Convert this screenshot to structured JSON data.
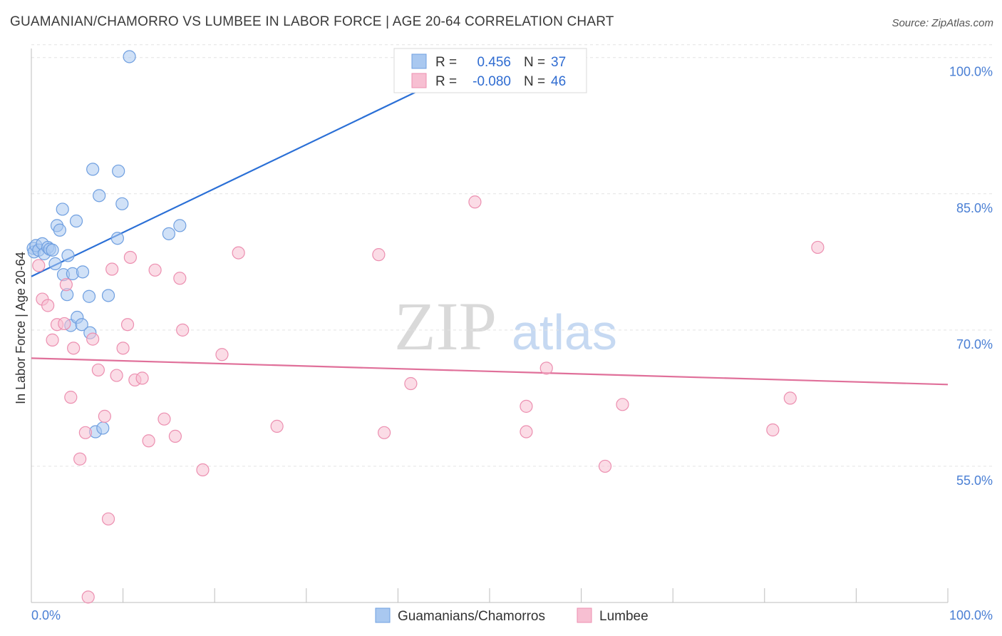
{
  "header": {
    "title": "GUAMANIAN/CHAMORRO VS LUMBEE IN LABOR FORCE | AGE 20-64 CORRELATION CHART",
    "source": "Source: ZipAtlas.com"
  },
  "watermark": {
    "zip": "ZIP",
    "atlas": "atlas"
  },
  "legend": {
    "rows": [
      {
        "r_label": "R =",
        "r_value": "0.456",
        "n_label": "N =",
        "n_value": "37"
      },
      {
        "r_label": "R =",
        "r_value": "-0.080",
        "n_label": "N =",
        "n_value": "46"
      }
    ]
  },
  "colors": {
    "blue_fill": "#a9c8f0",
    "blue_stroke": "#6f9fe0",
    "blue_line": "#2a6fd6",
    "pink_fill": "#f7bfd2",
    "pink_stroke": "#ec8fb0",
    "pink_line": "#e0709a",
    "grid": "#e3e3e3",
    "tick_text": "#4a7fd4"
  },
  "chart_data": {
    "type": "scatter",
    "title": "GUAMANIAN/CHAMORRO VS LUMBEE IN LABOR FORCE | AGE 20-64 CORRELATION CHART",
    "xlabel": "",
    "ylabel": "In Labor Force | Age 20-64",
    "xlim": [
      0,
      100
    ],
    "ylim": [
      40,
      101
    ],
    "x_tick_labels": [
      "0.0%",
      "100.0%"
    ],
    "y_ticks": [
      55,
      70,
      85,
      100
    ],
    "y_tick_labels": [
      "55.0%",
      "70.0%",
      "85.0%",
      "100.0%"
    ],
    "grid": true,
    "legend_position": "top-center",
    "series": [
      {
        "name": "Guamanians/Chamorros",
        "color": "#6f9fe0",
        "trend": {
          "x": [
            0,
            50
          ],
          "y": [
            75.9,
            100.1
          ]
        },
        "points": [
          {
            "x": 0.2,
            "y": 79.0
          },
          {
            "x": 0.3,
            "y": 78.6
          },
          {
            "x": 0.5,
            "y": 79.3
          },
          {
            "x": 0.8,
            "y": 78.8
          },
          {
            "x": 1.2,
            "y": 79.5
          },
          {
            "x": 1.4,
            "y": 78.4
          },
          {
            "x": 1.8,
            "y": 79.1
          },
          {
            "x": 2.0,
            "y": 78.9
          },
          {
            "x": 2.3,
            "y": 78.8
          },
          {
            "x": 2.6,
            "y": 77.3
          },
          {
            "x": 2.8,
            "y": 81.5
          },
          {
            "x": 3.1,
            "y": 81.0
          },
          {
            "x": 3.4,
            "y": 83.3
          },
          {
            "x": 3.5,
            "y": 76.1
          },
          {
            "x": 3.9,
            "y": 73.9
          },
          {
            "x": 4.0,
            "y": 78.2
          },
          {
            "x": 4.3,
            "y": 70.5
          },
          {
            "x": 4.5,
            "y": 76.2
          },
          {
            "x": 4.9,
            "y": 82.0
          },
          {
            "x": 5.0,
            "y": 71.4
          },
          {
            "x": 5.5,
            "y": 70.6
          },
          {
            "x": 5.6,
            "y": 76.4
          },
          {
            "x": 6.3,
            "y": 73.7
          },
          {
            "x": 6.4,
            "y": 69.7
          },
          {
            "x": 6.7,
            "y": 87.7
          },
          {
            "x": 7.0,
            "y": 58.8
          },
          {
            "x": 7.4,
            "y": 84.8
          },
          {
            "x": 7.8,
            "y": 59.2
          },
          {
            "x": 8.4,
            "y": 73.8
          },
          {
            "x": 9.4,
            "y": 80.1
          },
          {
            "x": 9.5,
            "y": 87.5
          },
          {
            "x": 9.9,
            "y": 83.9
          },
          {
            "x": 10.7,
            "y": 100.1
          },
          {
            "x": 15.0,
            "y": 80.6
          },
          {
            "x": 16.2,
            "y": 81.5
          },
          {
            "x": 44.6,
            "y": 100.2
          },
          {
            "x": 47.0,
            "y": 98.4
          }
        ]
      },
      {
        "name": "Lumbee",
        "color": "#ec8fb0",
        "trend": {
          "x": [
            0,
            100
          ],
          "y": [
            66.9,
            64.0
          ]
        },
        "points": [
          {
            "x": 0.8,
            "y": 77.1
          },
          {
            "x": 1.2,
            "y": 73.4
          },
          {
            "x": 1.8,
            "y": 72.7
          },
          {
            "x": 2.3,
            "y": 68.9
          },
          {
            "x": 2.8,
            "y": 70.6
          },
          {
            "x": 3.6,
            "y": 70.7
          },
          {
            "x": 3.8,
            "y": 75.0
          },
          {
            "x": 4.3,
            "y": 62.6
          },
          {
            "x": 4.6,
            "y": 68.0
          },
          {
            "x": 5.3,
            "y": 55.8
          },
          {
            "x": 5.9,
            "y": 58.7
          },
          {
            "x": 6.2,
            "y": 40.6
          },
          {
            "x": 6.7,
            "y": 69.0
          },
          {
            "x": 7.3,
            "y": 65.6
          },
          {
            "x": 8.0,
            "y": 60.5
          },
          {
            "x": 8.4,
            "y": 49.2
          },
          {
            "x": 8.8,
            "y": 76.7
          },
          {
            "x": 9.3,
            "y": 65.0
          },
          {
            "x": 10.0,
            "y": 68.0
          },
          {
            "x": 10.5,
            "y": 70.6
          },
          {
            "x": 10.8,
            "y": 78.0
          },
          {
            "x": 11.3,
            "y": 64.5
          },
          {
            "x": 12.1,
            "y": 64.7
          },
          {
            "x": 12.8,
            "y": 57.8
          },
          {
            "x": 13.5,
            "y": 76.6
          },
          {
            "x": 14.5,
            "y": 60.2
          },
          {
            "x": 15.7,
            "y": 58.3
          },
          {
            "x": 16.2,
            "y": 75.7
          },
          {
            "x": 16.5,
            "y": 70.0
          },
          {
            "x": 18.7,
            "y": 54.6
          },
          {
            "x": 20.8,
            "y": 67.3
          },
          {
            "x": 22.6,
            "y": 78.5
          },
          {
            "x": 26.8,
            "y": 59.4
          },
          {
            "x": 37.9,
            "y": 78.3
          },
          {
            "x": 38.5,
            "y": 58.7
          },
          {
            "x": 41.4,
            "y": 64.1
          },
          {
            "x": 48.4,
            "y": 84.1
          },
          {
            "x": 54.0,
            "y": 61.6
          },
          {
            "x": 54.0,
            "y": 58.8
          },
          {
            "x": 56.2,
            "y": 65.8
          },
          {
            "x": 62.6,
            "y": 55.0
          },
          {
            "x": 64.5,
            "y": 61.8
          },
          {
            "x": 80.9,
            "y": 59.0
          },
          {
            "x": 82.8,
            "y": 62.5
          },
          {
            "x": 85.8,
            "y": 79.1
          },
          {
            "x": 47.5,
            "y": 98.0
          }
        ]
      }
    ]
  }
}
